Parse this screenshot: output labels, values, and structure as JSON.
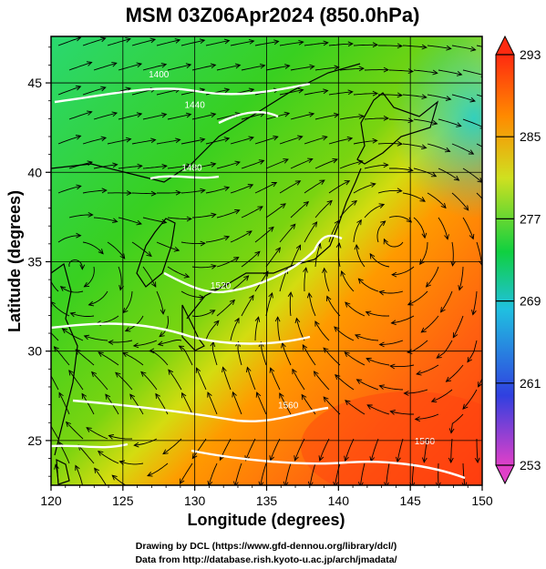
{
  "title": "MSM 03Z06Apr2024 (850.0hPa)",
  "x_axis": {
    "label": "Longitude (degrees)",
    "range": [
      120,
      150
    ],
    "ticks": [
      "120",
      "125",
      "130",
      "135",
      "140",
      "145",
      "150"
    ]
  },
  "y_axis": {
    "label": "Latitude  (degrees)",
    "range": [
      22.5,
      47.6
    ],
    "ticks": [
      "25",
      "30",
      "35",
      "40",
      "45"
    ]
  },
  "colorbar": {
    "range": [
      253,
      293
    ],
    "ticks": [
      "253",
      "261",
      "269",
      "277",
      "285",
      "293"
    ],
    "colors": [
      "#e040c8",
      "#3040e0",
      "#20c0e0",
      "#10d040",
      "#d0e020",
      "#ff8a00",
      "#ff2a10"
    ]
  },
  "contour_labels": [
    {
      "text": "1400",
      "lon": 127.5,
      "lat": 45.3
    },
    {
      "text": "1440",
      "lon": 130.0,
      "lat": 43.6
    },
    {
      "text": "1480",
      "lon": 129.8,
      "lat": 40.1
    },
    {
      "text": "1520",
      "lon": 131.8,
      "lat": 33.5
    },
    {
      "text": "1560",
      "lon": 136.5,
      "lat": 26.8
    },
    {
      "text": "1560",
      "lon": 146.0,
      "lat": 24.8
    }
  ],
  "credits": {
    "line1": "Drawing by DCL (https://www.gfd-dennou.org/library/dcl/)",
    "line2": "Data from http://database.rish.kyoto-u.ac.jp/arch/jmadata/"
  }
}
